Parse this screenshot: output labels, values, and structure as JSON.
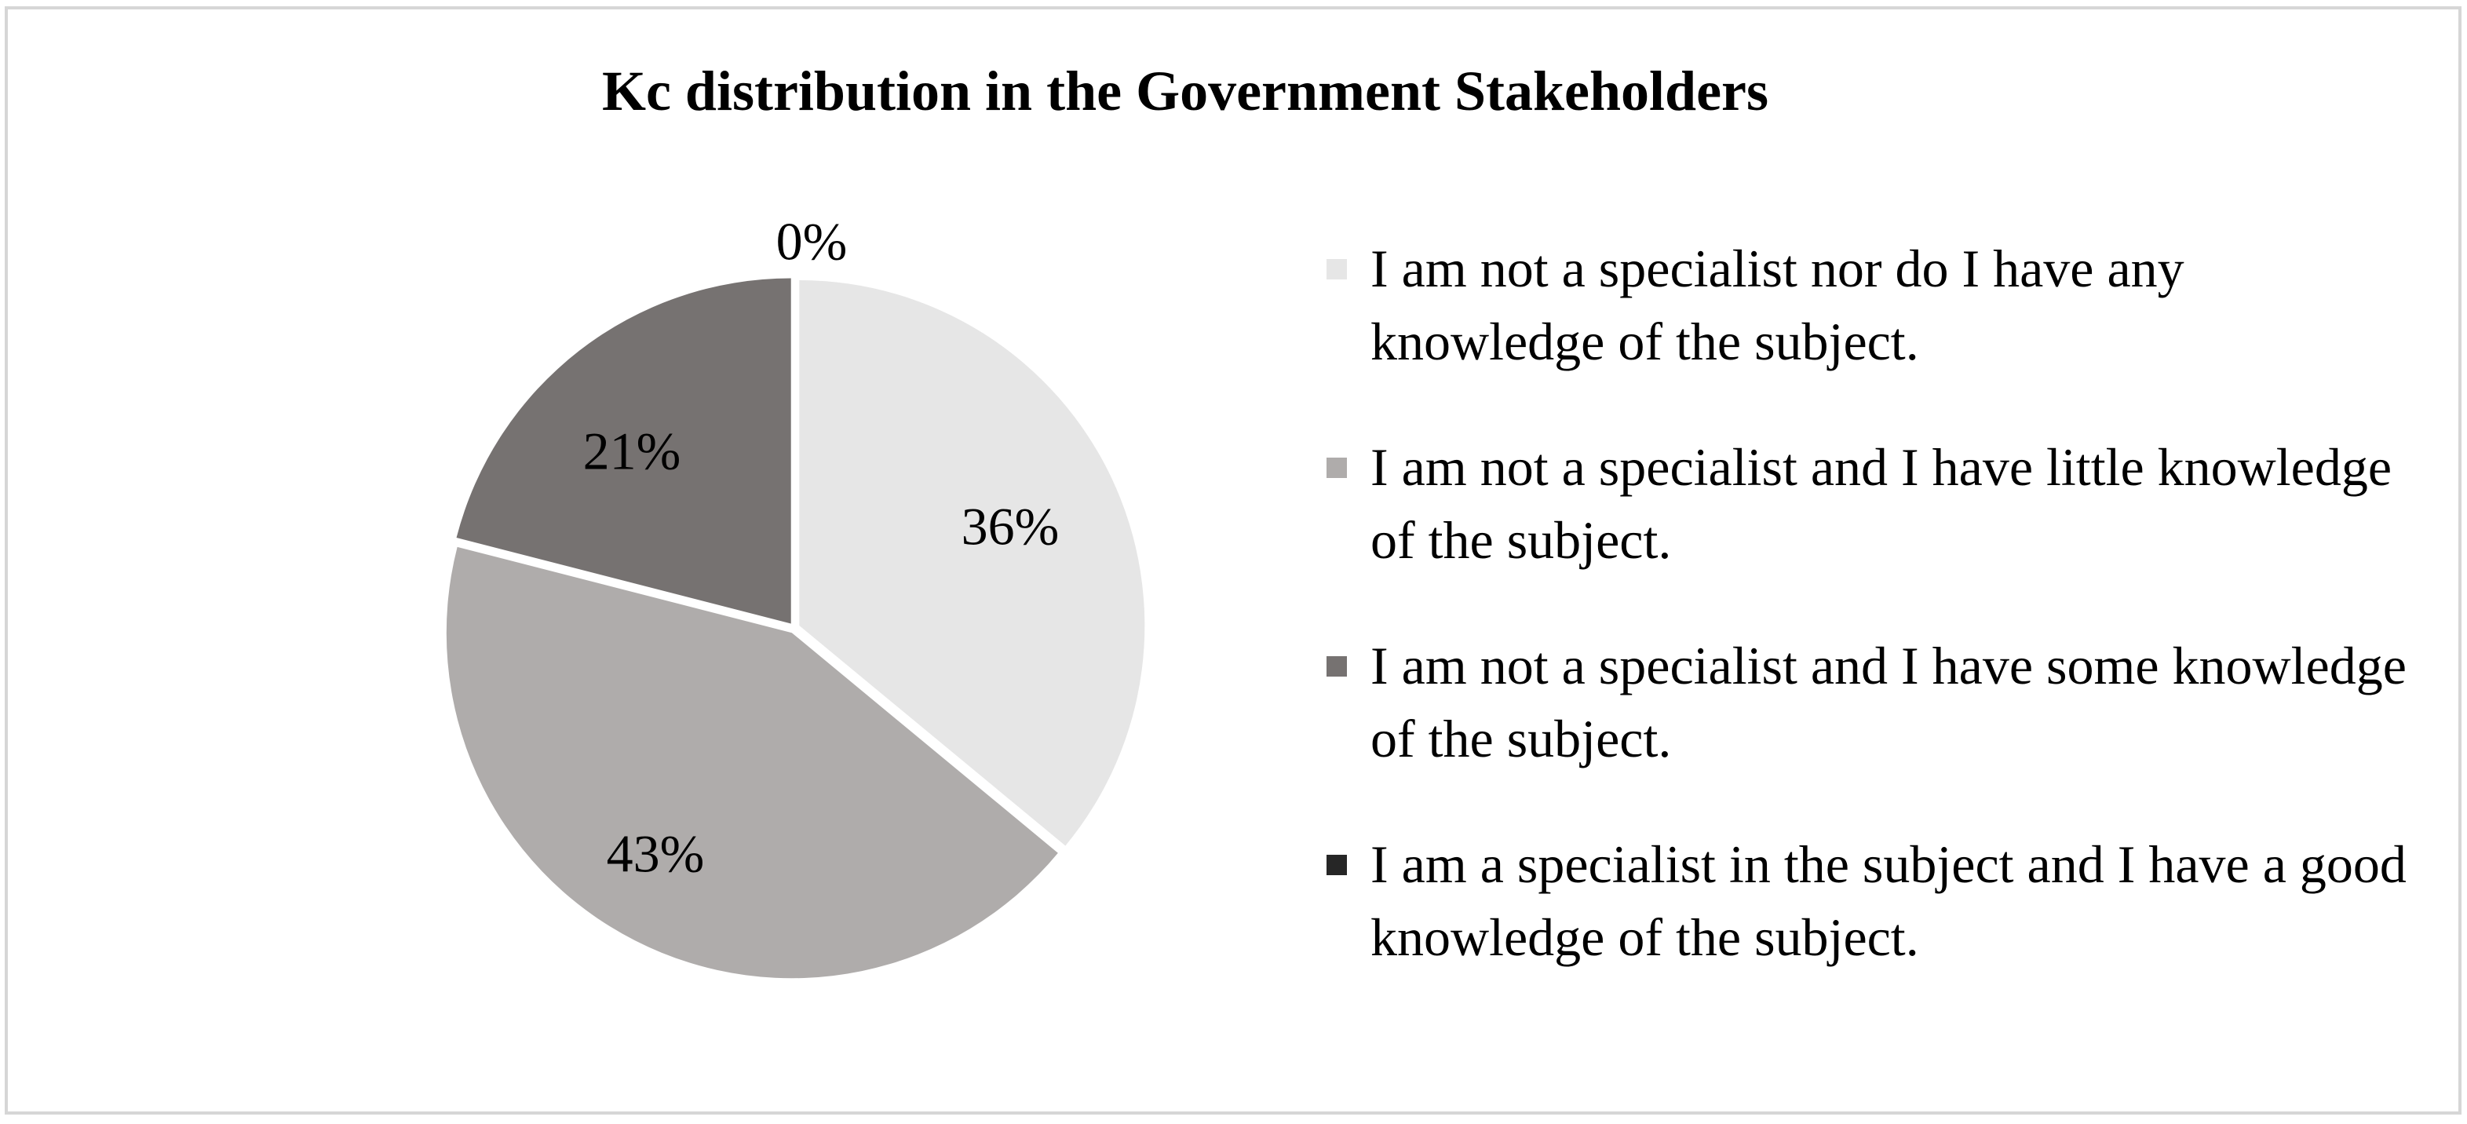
{
  "chart_data": {
    "type": "pie",
    "title": "Kc distribution in the Government Stakeholders",
    "slices": [
      {
        "label": "I am not a specialist nor do I have any knowledge of the subject.",
        "value": 36,
        "value_label": "36%",
        "color": "#e6e6e6"
      },
      {
        "label": "I am not a specialist and I have little knowledge of the subject.",
        "value": 43,
        "value_label": "43%",
        "color": "#afacab"
      },
      {
        "label": "I am not a specialist and I have some knowledge of the subject.",
        "value": 21,
        "value_label": "21%",
        "color": "#767271"
      },
      {
        "label": "I am a specialist in the subject and I have a good knowledge of the subject.",
        "value": 0,
        "value_label": "0%",
        "color": "#262626"
      }
    ],
    "legend_position": "right"
  }
}
